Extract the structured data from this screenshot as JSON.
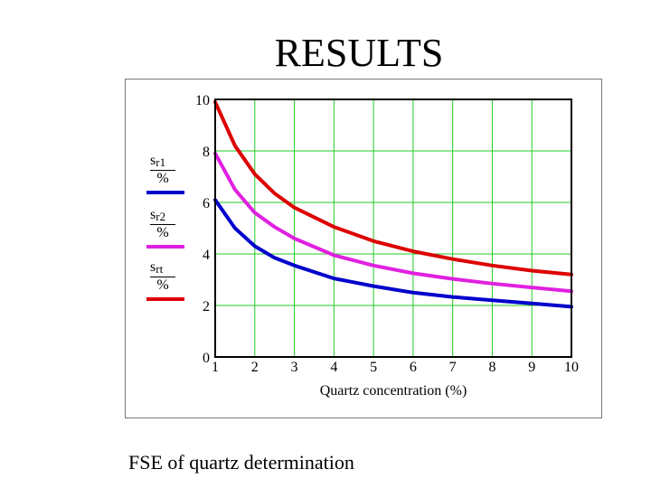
{
  "slide": {
    "title": "RESULTS",
    "caption": "FSE of quartz determination"
  },
  "legend": [
    {
      "symbol": "s",
      "subscript": "r1",
      "unit": "%",
      "color": "#0000cc"
    },
    {
      "symbol": "s",
      "subscript": "r2",
      "unit": "%",
      "color": "#e020e0"
    },
    {
      "symbol": "s",
      "subscript": "rt",
      "unit": "%",
      "color": "#dd0000"
    }
  ],
  "chart_data": {
    "type": "line",
    "xlabel": "Quartz concentration (%)",
    "ylabel": "",
    "xlim": [
      1,
      10
    ],
    "ylim": [
      0,
      10
    ],
    "xticks": [
      1,
      2,
      3,
      4,
      5,
      6,
      7,
      8,
      9,
      10
    ],
    "yticks": [
      0,
      2,
      4,
      6,
      8,
      10
    ],
    "grid": true,
    "grid_color": "#22cc22",
    "legend_position": "left",
    "x": [
      1,
      1.5,
      2,
      2.5,
      3,
      4,
      5,
      6,
      7,
      8,
      9,
      10
    ],
    "series": [
      {
        "name": "s r1 / %",
        "color": "#0000cc",
        "values": [
          6.1,
          5.0,
          4.3,
          3.85,
          3.55,
          3.05,
          2.75,
          2.5,
          2.33,
          2.2,
          2.08,
          1.95
        ]
      },
      {
        "name": "s r2 / %",
        "color": "#e020e0",
        "values": [
          7.9,
          6.5,
          5.6,
          5.05,
          4.6,
          3.95,
          3.55,
          3.25,
          3.03,
          2.85,
          2.7,
          2.55
        ]
      },
      {
        "name": "s rt / %",
        "color": "#dd0000",
        "values": [
          9.9,
          8.2,
          7.1,
          6.35,
          5.8,
          5.05,
          4.5,
          4.1,
          3.8,
          3.55,
          3.35,
          3.2
        ]
      }
    ]
  }
}
